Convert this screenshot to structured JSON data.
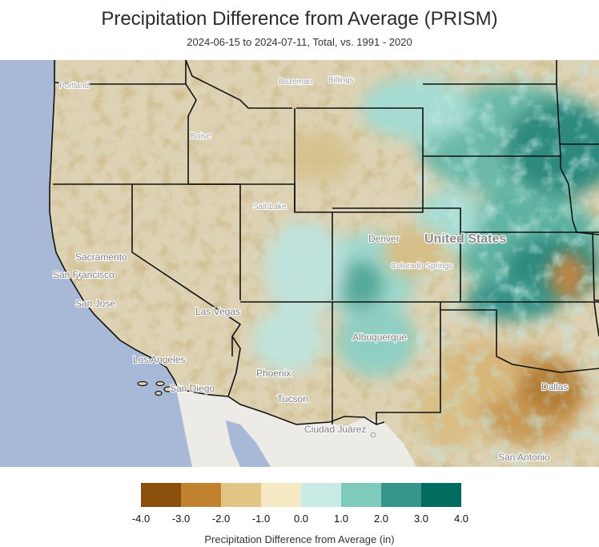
{
  "title": "Precipitation Difference from Average (PRISM)",
  "subtitle": "2024-06-15 to 2024-07-11, Total, vs. 1991 - 2020",
  "map": {
    "places": [
      {
        "id": "portland",
        "label": "Portland",
        "cls": "faint"
      },
      {
        "id": "bozeman",
        "label": "Bozeman",
        "cls": "faint"
      },
      {
        "id": "billings",
        "label": "Billings",
        "cls": "faint"
      },
      {
        "id": "boise",
        "label": "Boise",
        "cls": "faint"
      },
      {
        "id": "saltlake",
        "label": "Salt Lake",
        "cls": "faint"
      },
      {
        "id": "sacramento",
        "label": "Sacramento",
        "cls": ""
      },
      {
        "id": "sanfrancisco",
        "label": "San Francisco",
        "cls": ""
      },
      {
        "id": "sanjose",
        "label": "San Jose",
        "cls": ""
      },
      {
        "id": "lasvegas",
        "label": "Las Vegas",
        "cls": ""
      },
      {
        "id": "losangeles",
        "label": "Los Angeles",
        "cls": ""
      },
      {
        "id": "sandiego",
        "label": "San Diego",
        "cls": ""
      },
      {
        "id": "phoenix",
        "label": "Phoenix",
        "cls": ""
      },
      {
        "id": "tucson",
        "label": "Tucson",
        "cls": ""
      },
      {
        "id": "denver",
        "label": "Denver",
        "cls": ""
      },
      {
        "id": "coloradosprings",
        "label": "Colorado Springs",
        "cls": "faint"
      },
      {
        "id": "albuquerque",
        "label": "Albuquerque",
        "cls": ""
      },
      {
        "id": "ciudadjuarez",
        "label": "Ciudad Juárez",
        "cls": ""
      },
      {
        "id": "unitedstates",
        "label": "United States",
        "cls": "big"
      },
      {
        "id": "dallas",
        "label": "Dallas",
        "cls": ""
      },
      {
        "id": "sanantonio",
        "label": "San Antonio",
        "cls": ""
      }
    ]
  },
  "legend": {
    "colors": [
      "#8a4f0a",
      "#c0822e",
      "#e1c584",
      "#f6e9c4",
      "#c8ebe5",
      "#7fcbbb",
      "#36968b",
      "#016b5f"
    ],
    "ticks": [
      "-4.0",
      "-3.0",
      "-2.0",
      "-1.0",
      "0.0",
      "1.0",
      "2.0",
      "3.0",
      "4.0"
    ],
    "title": "Precipitation Difference from Average (in)"
  }
}
